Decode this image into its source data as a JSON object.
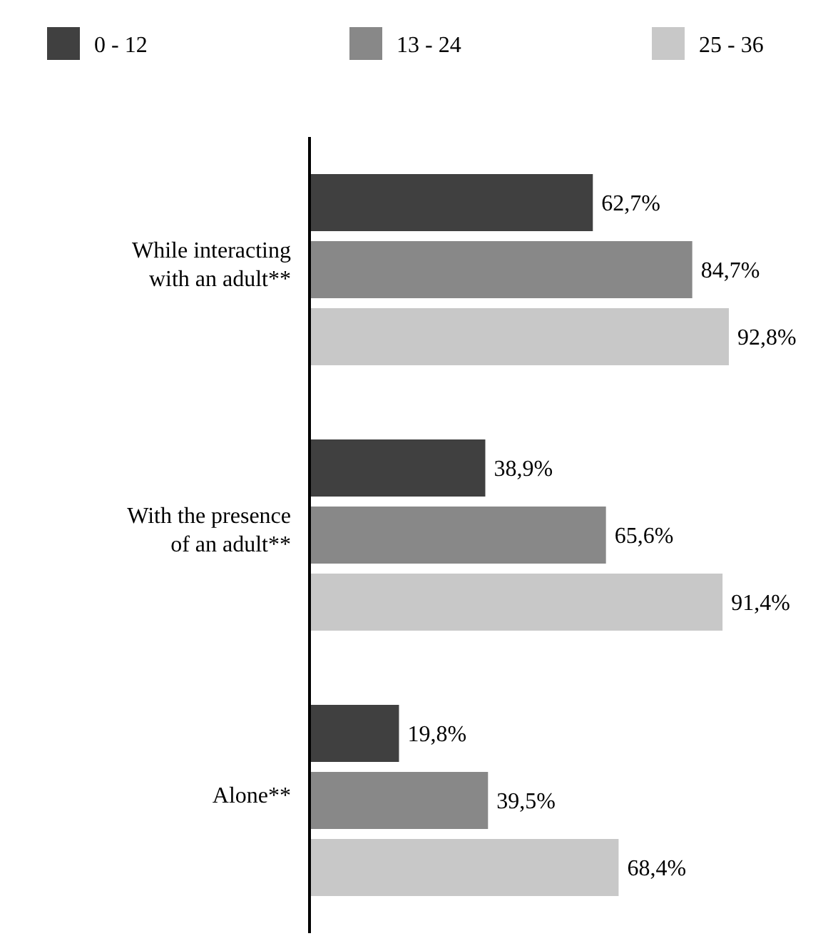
{
  "chart_data": {
    "type": "bar",
    "orientation": "horizontal",
    "legend": "top",
    "categories": [
      "While interacting with an adult**",
      "With the presence of an adult**",
      "Alone**"
    ],
    "series": [
      {
        "name": "0 - 12",
        "color": "#404040",
        "values": [
          62.7,
          38.9,
          19.8
        ],
        "value_labels": [
          "62,7%",
          "38,9%",
          "19,8%"
        ]
      },
      {
        "name": "13 - 24",
        "color": "#888888",
        "values": [
          84.7,
          65.6,
          39.5
        ],
        "value_labels": [
          "84,7%",
          "65,6%",
          "39,5%"
        ]
      },
      {
        "name": "25 - 36",
        "color": "#c8c8c8",
        "values": [
          92.8,
          91.4,
          68.4
        ],
        "value_labels": [
          "92,8%",
          "91,4%",
          "68,4%"
        ]
      }
    ]
  }
}
